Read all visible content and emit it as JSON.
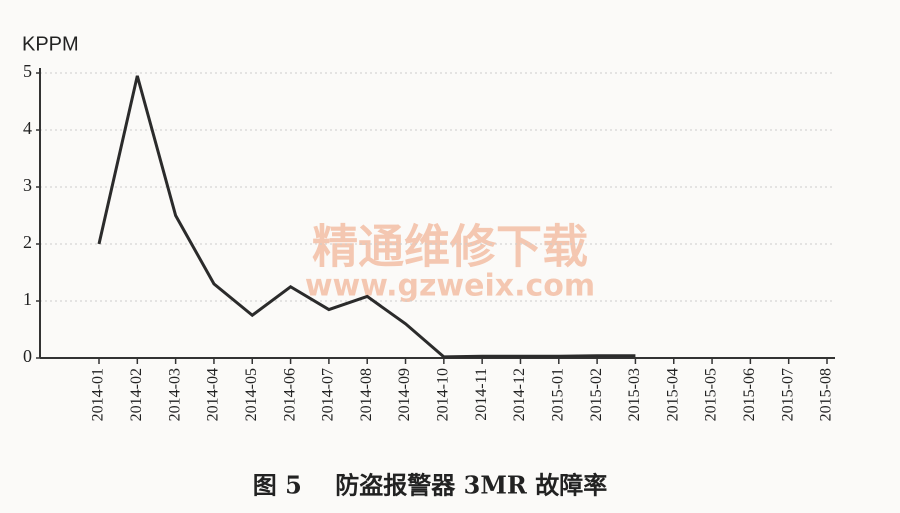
{
  "chart_data": {
    "type": "line",
    "y_axis_label": "KPPM",
    "caption": "图 5    防盗报警器 3MR 故障率",
    "watermark": "精通维修下载",
    "watermark_url": "www.gzweix.com",
    "categories": [
      "2014-01",
      "2014-02",
      "2014-03",
      "2014-04",
      "2014-05",
      "2014-06",
      "2014-07",
      "2014-08",
      "2014-09",
      "2014-10",
      "2014-11",
      "2014-12",
      "2015-01",
      "2015-02",
      "2015-03",
      "2015-04",
      "2015-05",
      "2015-06",
      "2015-07",
      "2015-08"
    ],
    "values": [
      2,
      4.95,
      2.5,
      1.3,
      0.75,
      1.25,
      0.85,
      1.08,
      0.6,
      0.02,
      0.03,
      0.03,
      0.03,
      0.04,
      0.04,
      null,
      null,
      null,
      null,
      null
    ],
    "color": "#2b2b2b",
    "ylim": [
      0,
      5
    ],
    "yticks": [
      0,
      1,
      2,
      3,
      4,
      5
    ],
    "grid": true
  }
}
